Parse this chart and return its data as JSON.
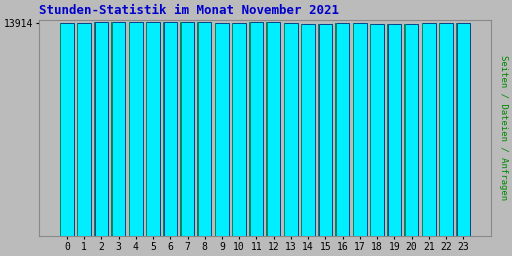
{
  "title": "Stunden-Statistik im Monat November 2021",
  "ylabel": "Seiten / Dateien / Anfragen",
  "xlabel_tick_labels": [
    "0",
    "1",
    "2",
    "3",
    "4",
    "5",
    "6",
    "7",
    "8",
    "9",
    "10",
    "11",
    "12",
    "13",
    "14",
    "15",
    "16",
    "17",
    "18",
    "19",
    "20",
    "21",
    "22",
    "23"
  ],
  "ytick_value": 13914,
  "ytick_label": "13914",
  "bar_values": [
    13870,
    13900,
    13920,
    13925,
    13950,
    13970,
    13955,
    13940,
    13925,
    13905,
    13910,
    13930,
    13945,
    13895,
    13840,
    13838,
    13855,
    13865,
    13820,
    13828,
    13845,
    13855,
    13868,
    13875
  ],
  "bar_color": "#00EEFF",
  "bar_edge_color": "#004488",
  "bar_left_edge_color": "#008866",
  "title_color": "#0000CC",
  "ylabel_color": "#008800",
  "background_color": "#BBBBBB",
  "plot_bg_color": "#BBBBBB",
  "ymin": 0,
  "ymax": 14100,
  "figwidth": 5.12,
  "figheight": 2.56,
  "dpi": 100
}
